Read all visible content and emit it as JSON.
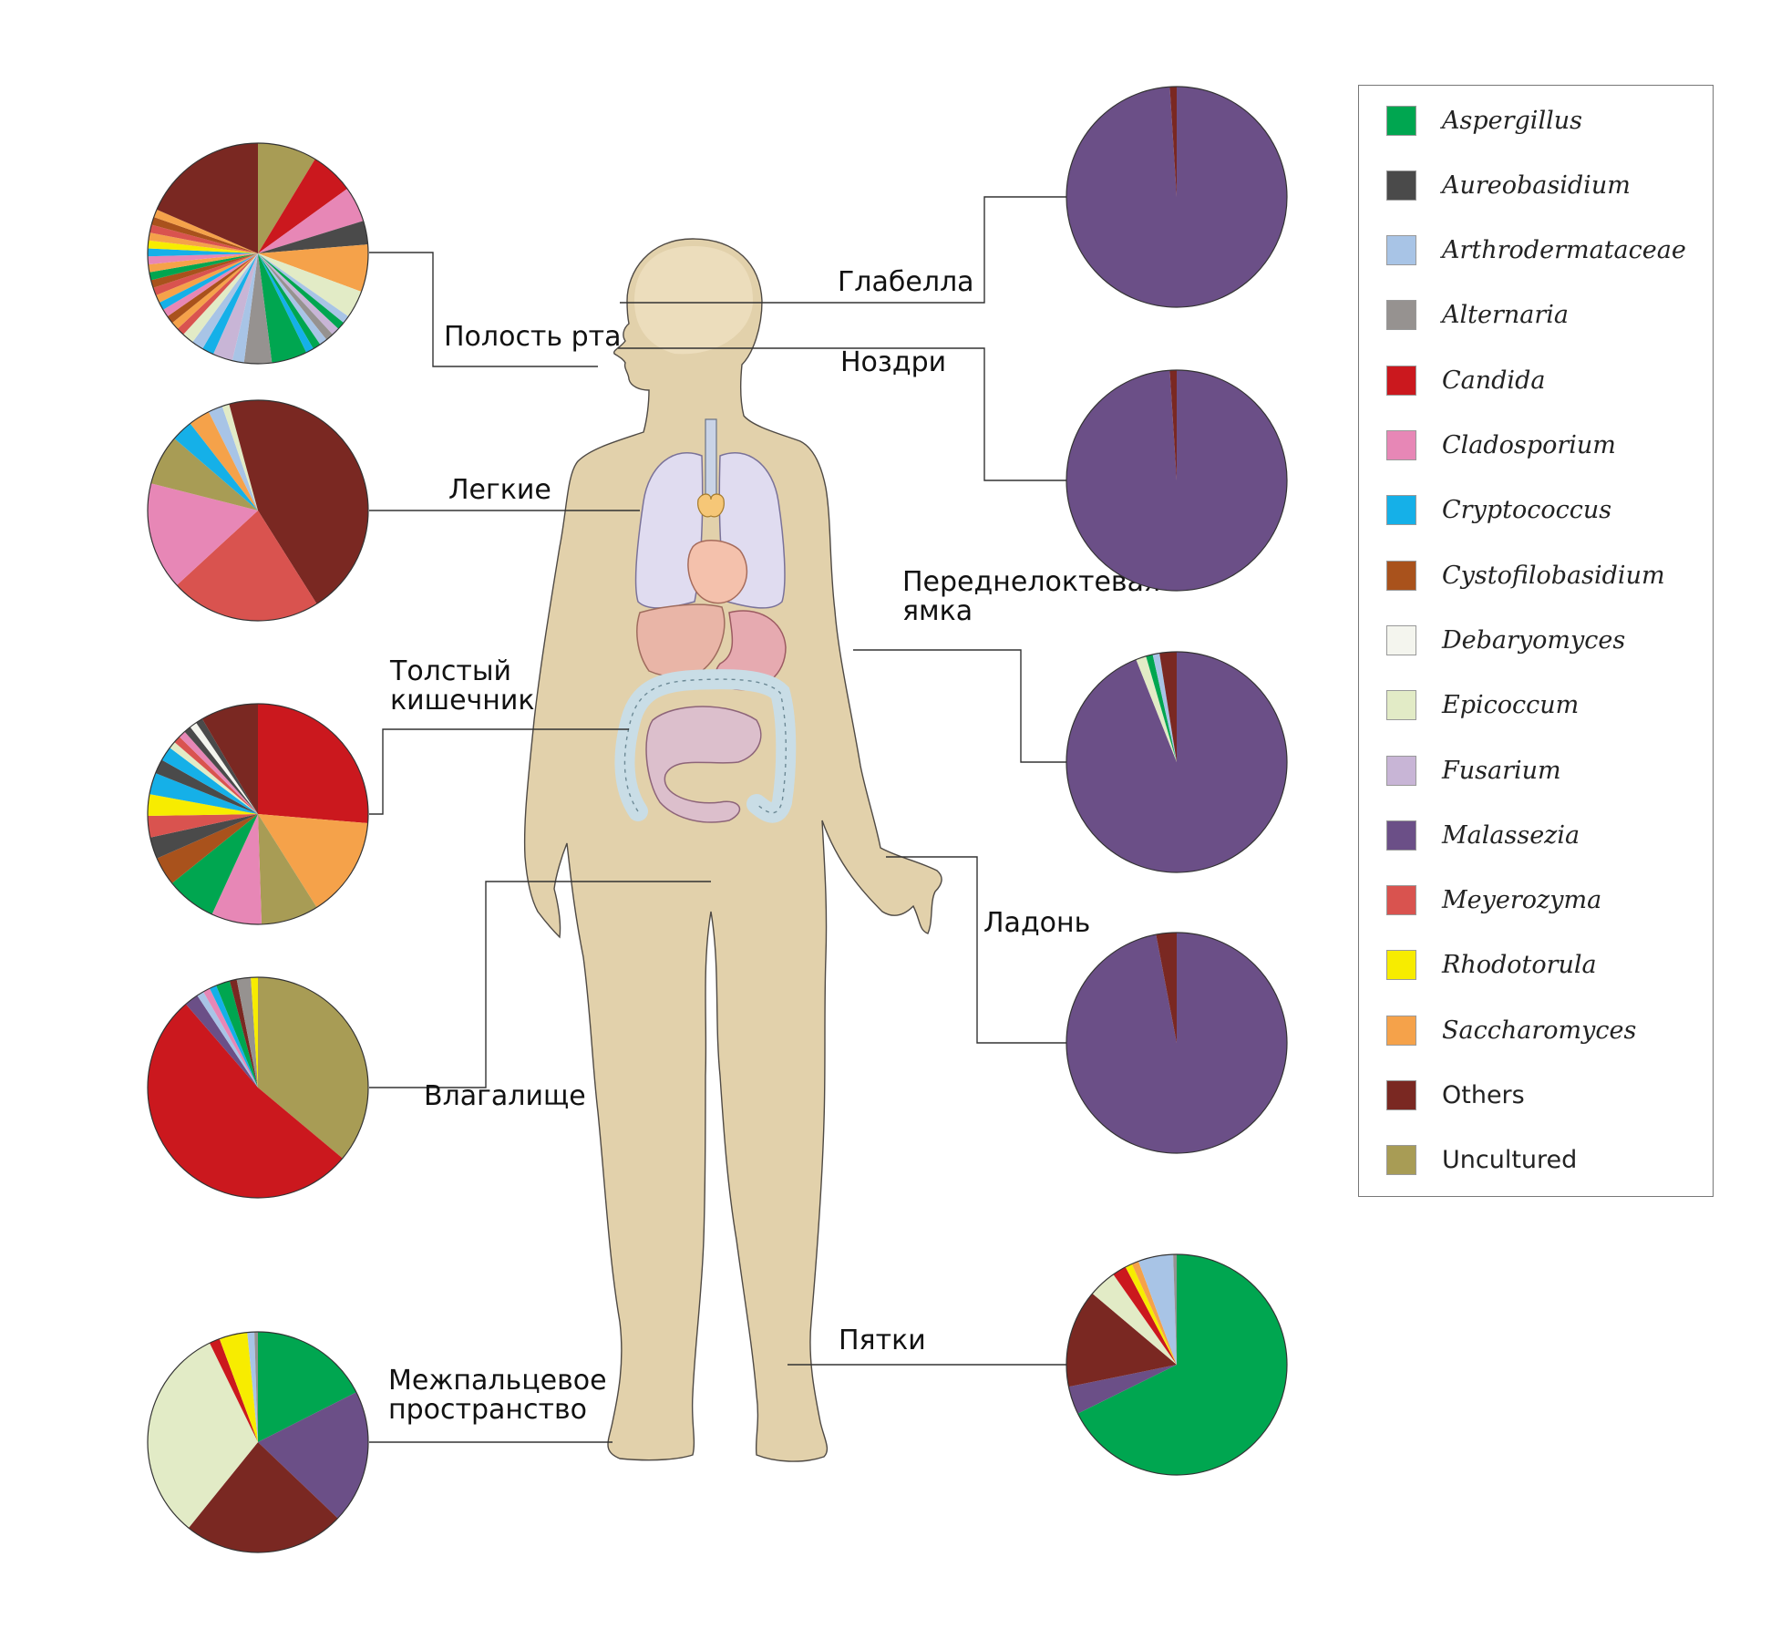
{
  "colors": {
    "Aspergillus": "#00a650",
    "Aureobasidium": "#4a4a4a",
    "Arthrodermataceae": "#a8c4e6",
    "Alternaria": "#969290",
    "Candida": "#cb181e",
    "Cladosporium": "#e787b6",
    "Cryptococcus": "#15b0e8",
    "Cystofilobasidium": "#a9521c",
    "Debaryomyces": "#f4f5ee",
    "Epicoccum": "#e2ebc6",
    "Fusarium": "#c8b5d6",
    "Malassezia": "#6b4f87",
    "Meyerozyma": "#d9534f",
    "Rhodotorula": "#f7ec00",
    "Saccharomyces": "#f5a24a",
    "Others": "#7a2822",
    "Uncultured": "#a89c55"
  },
  "legend": [
    {
      "label": "Aspergillus",
      "key": "Aspergillus",
      "italic": true
    },
    {
      "label": "Aureobasidium",
      "key": "Aureobasidium",
      "italic": true
    },
    {
      "label": "Arthrodermataceae",
      "key": "Arthrodermataceae",
      "italic": true
    },
    {
      "label": "Alternaria",
      "key": "Alternaria",
      "italic": true
    },
    {
      "label": "Candida",
      "key": "Candida",
      "italic": true
    },
    {
      "label": "Cladosporium",
      "key": "Cladosporium",
      "italic": true
    },
    {
      "label": "Cryptococcus",
      "key": "Cryptococcus",
      "italic": true
    },
    {
      "label": "Cystofilobasidium",
      "key": "Cystofilobasidium",
      "italic": true
    },
    {
      "label": "Debaryomyces",
      "key": "Debaryomyces",
      "italic": true
    },
    {
      "label": "Epicoccum",
      "key": "Epicoccum",
      "italic": true
    },
    {
      "label": "Fusarium",
      "key": "Fusarium",
      "italic": true
    },
    {
      "label": "Malassezia",
      "key": "Malassezia",
      "italic": true
    },
    {
      "label": "Meyerozyma",
      "key": "Meyerozyma",
      "italic": true
    },
    {
      "label": "Rhodotorula",
      "key": "Rhodotorula",
      "italic": true
    },
    {
      "label": "Saccharomyces",
      "key": "Saccharomyces",
      "italic": true
    },
    {
      "label": "Others",
      "key": "Others",
      "italic": false
    },
    {
      "label": "Uncultured",
      "key": "Uncultured",
      "italic": false
    }
  ],
  "chart_data": [
    {
      "type": "pie",
      "site": "oral",
      "label": [
        "Полость рта"
      ],
      "note": "many small unlabelled slices; the multi-coloured thin slices are approximated",
      "slices": [
        {
          "key": "Uncultured",
          "value": 7.5
        },
        {
          "key": "Candida",
          "value": 5.5
        },
        {
          "key": "Cladosporium",
          "value": 4.5
        },
        {
          "key": "Aureobasidium",
          "value": 3
        },
        {
          "key": "Saccharomyces",
          "value": 6
        },
        {
          "key": "Epicoccum",
          "value": 3.5
        },
        {
          "key": "Arthrodermataceae",
          "value": 1
        },
        {
          "key": "Aspergillus",
          "value": 1
        },
        {
          "key": "Fusarium",
          "value": 1
        },
        {
          "key": "Alternaria",
          "value": 1
        },
        {
          "key": "Arthrodermataceae",
          "value": 1
        },
        {
          "key": "Aspergillus",
          "value": 1
        },
        {
          "key": "Cryptococcus",
          "value": 1
        },
        {
          "key": "Aspergillus",
          "value": 4.5
        },
        {
          "key": "Alternaria",
          "value": 3.5
        },
        {
          "key": "Arthrodermataceae",
          "value": 1.5
        },
        {
          "key": "Fusarium",
          "value": 2.5
        },
        {
          "key": "Cryptococcus",
          "value": 1.5
        },
        {
          "key": "Arthrodermataceae",
          "value": 1.5
        },
        {
          "key": "Epicoccum",
          "value": 1.5
        },
        {
          "key": "Meyerozyma",
          "value": 1
        },
        {
          "key": "Saccharomyces",
          "value": 1
        },
        {
          "key": "Cystofilobasidium",
          "value": 1
        },
        {
          "key": "Cladosporium",
          "value": 1
        },
        {
          "key": "Cryptococcus",
          "value": 1
        },
        {
          "key": "Saccharomyces",
          "value": 1
        },
        {
          "key": "Meyerozyma",
          "value": 1
        },
        {
          "key": "Cystofilobasidium",
          "value": 1
        },
        {
          "key": "Aspergillus",
          "value": 1
        },
        {
          "key": "Saccharomyces",
          "value": 1
        },
        {
          "key": "Cladosporium",
          "value": 1
        },
        {
          "key": "Cryptococcus",
          "value": 1
        },
        {
          "key": "Rhodotorula",
          "value": 1
        },
        {
          "key": "Saccharomyces",
          "value": 1
        },
        {
          "key": "Meyerozyma",
          "value": 1
        },
        {
          "key": "Cystofilobasidium",
          "value": 1
        },
        {
          "key": "Saccharomyces",
          "value": 1
        },
        {
          "key": "Others",
          "value": 16
        }
      ]
    },
    {
      "type": "pie",
      "site": "lungs",
      "label": [
        "Легкие"
      ],
      "slices": [
        {
          "key": "Others",
          "value": 39
        },
        {
          "key": "Meyerozyma",
          "value": 21
        },
        {
          "key": "Cladosporium",
          "value": 15
        },
        {
          "key": "Uncultured",
          "value": 7
        },
        {
          "key": "Cryptococcus",
          "value": 3
        },
        {
          "key": "Saccharomyces",
          "value": 3
        },
        {
          "key": "Arthrodermataceae",
          "value": 2
        },
        {
          "key": "Epicoccum",
          "value": 1
        },
        {
          "key": "Others",
          "value": 4
        }
      ]
    },
    {
      "type": "pie",
      "site": "large-intestine",
      "label": [
        "Толстый",
        "кишечник"
      ],
      "slices": [
        {
          "key": "Candida",
          "value": 25
        },
        {
          "key": "Saccharomyces",
          "value": 14
        },
        {
          "key": "Uncultured",
          "value": 8
        },
        {
          "key": "Cladosporium",
          "value": 7
        },
        {
          "key": "Aspergillus",
          "value": 7
        },
        {
          "key": "Cystofilobasidium",
          "value": 4
        },
        {
          "key": "Aureobasidium",
          "value": 3
        },
        {
          "key": "Meyerozyma",
          "value": 3
        },
        {
          "key": "Rhodotorula",
          "value": 3
        },
        {
          "key": "Cryptococcus",
          "value": 3
        },
        {
          "key": "Aureobasidium",
          "value": 2
        },
        {
          "key": "Cryptococcus",
          "value": 2
        },
        {
          "key": "Epicoccum",
          "value": 1
        },
        {
          "key": "Meyerozyma",
          "value": 1
        },
        {
          "key": "Cladosporium",
          "value": 1
        },
        {
          "key": "Aureobasidium",
          "value": 1
        },
        {
          "key": "Debaryomyces",
          "value": 1
        },
        {
          "key": "Aureobasidium",
          "value": 1
        },
        {
          "key": "Others",
          "value": 8
        }
      ]
    },
    {
      "type": "pie",
      "site": "vagina",
      "label": [
        "Влагалище"
      ],
      "slices": [
        {
          "key": "Uncultured",
          "value": 35
        },
        {
          "key": "Candida",
          "value": 51
        },
        {
          "key": "Malassezia",
          "value": 2
        },
        {
          "key": "Arthrodermataceae",
          "value": 1
        },
        {
          "key": "Cladosporium",
          "value": 1
        },
        {
          "key": "Cryptococcus",
          "value": 1
        },
        {
          "key": "Aspergillus",
          "value": 2
        },
        {
          "key": "Others",
          "value": 1
        },
        {
          "key": "Alternaria",
          "value": 2
        },
        {
          "key": "Rhodotorula",
          "value": 1
        }
      ]
    },
    {
      "type": "pie",
      "site": "toe-web",
      "label": [
        "Межпальцевое",
        "пространство"
      ],
      "slices": [
        {
          "key": "Aspergillus",
          "value": 17
        },
        {
          "key": "Malassezia",
          "value": 19
        },
        {
          "key": "Others",
          "value": 23
        },
        {
          "key": "Epicoccum",
          "value": 31
        },
        {
          "key": "Candida",
          "value": 1.5
        },
        {
          "key": "Rhodotorula",
          "value": 4
        },
        {
          "key": "Arthrodermataceae",
          "value": 1
        },
        {
          "key": "Alternaria",
          "value": 0.5
        }
      ]
    },
    {
      "type": "pie",
      "site": "glabella",
      "label": [
        "Глабелла"
      ],
      "slices": [
        {
          "key": "Malassezia",
          "value": 99
        },
        {
          "key": "Others",
          "value": 1
        }
      ]
    },
    {
      "type": "pie",
      "site": "nostrils",
      "label": [
        "Ноздри"
      ],
      "slices": [
        {
          "key": "Malassezia",
          "value": 99
        },
        {
          "key": "Others",
          "value": 1
        }
      ]
    },
    {
      "type": "pie",
      "site": "antecubital-fossa",
      "label": [
        "Переднелоктевая",
        "ямка"
      ],
      "slices": [
        {
          "key": "Malassezia",
          "value": 94
        },
        {
          "key": "Epicoccum",
          "value": 1.5
        },
        {
          "key": "Aspergillus",
          "value": 1
        },
        {
          "key": "Arthrodermataceae",
          "value": 1
        },
        {
          "key": "Others",
          "value": 2.5
        }
      ]
    },
    {
      "type": "pie",
      "site": "palm",
      "label": [
        "Ладонь"
      ],
      "slices": [
        {
          "key": "Malassezia",
          "value": 97
        },
        {
          "key": "Others",
          "value": 3
        }
      ]
    },
    {
      "type": "pie",
      "site": "heel",
      "label": [
        "Пятки"
      ],
      "slices": [
        {
          "key": "Aspergillus",
          "value": 66
        },
        {
          "key": "Malassezia",
          "value": 4
        },
        {
          "key": "Others",
          "value": 14
        },
        {
          "key": "Epicoccum",
          "value": 4
        },
        {
          "key": "Candida",
          "value": 2
        },
        {
          "key": "Rhodotorula",
          "value": 1
        },
        {
          "key": "Saccharomyces",
          "value": 1
        },
        {
          "key": "Arthrodermataceae",
          "value": 5
        },
        {
          "key": "Alternaria",
          "value": 0.5
        }
      ]
    }
  ]
}
